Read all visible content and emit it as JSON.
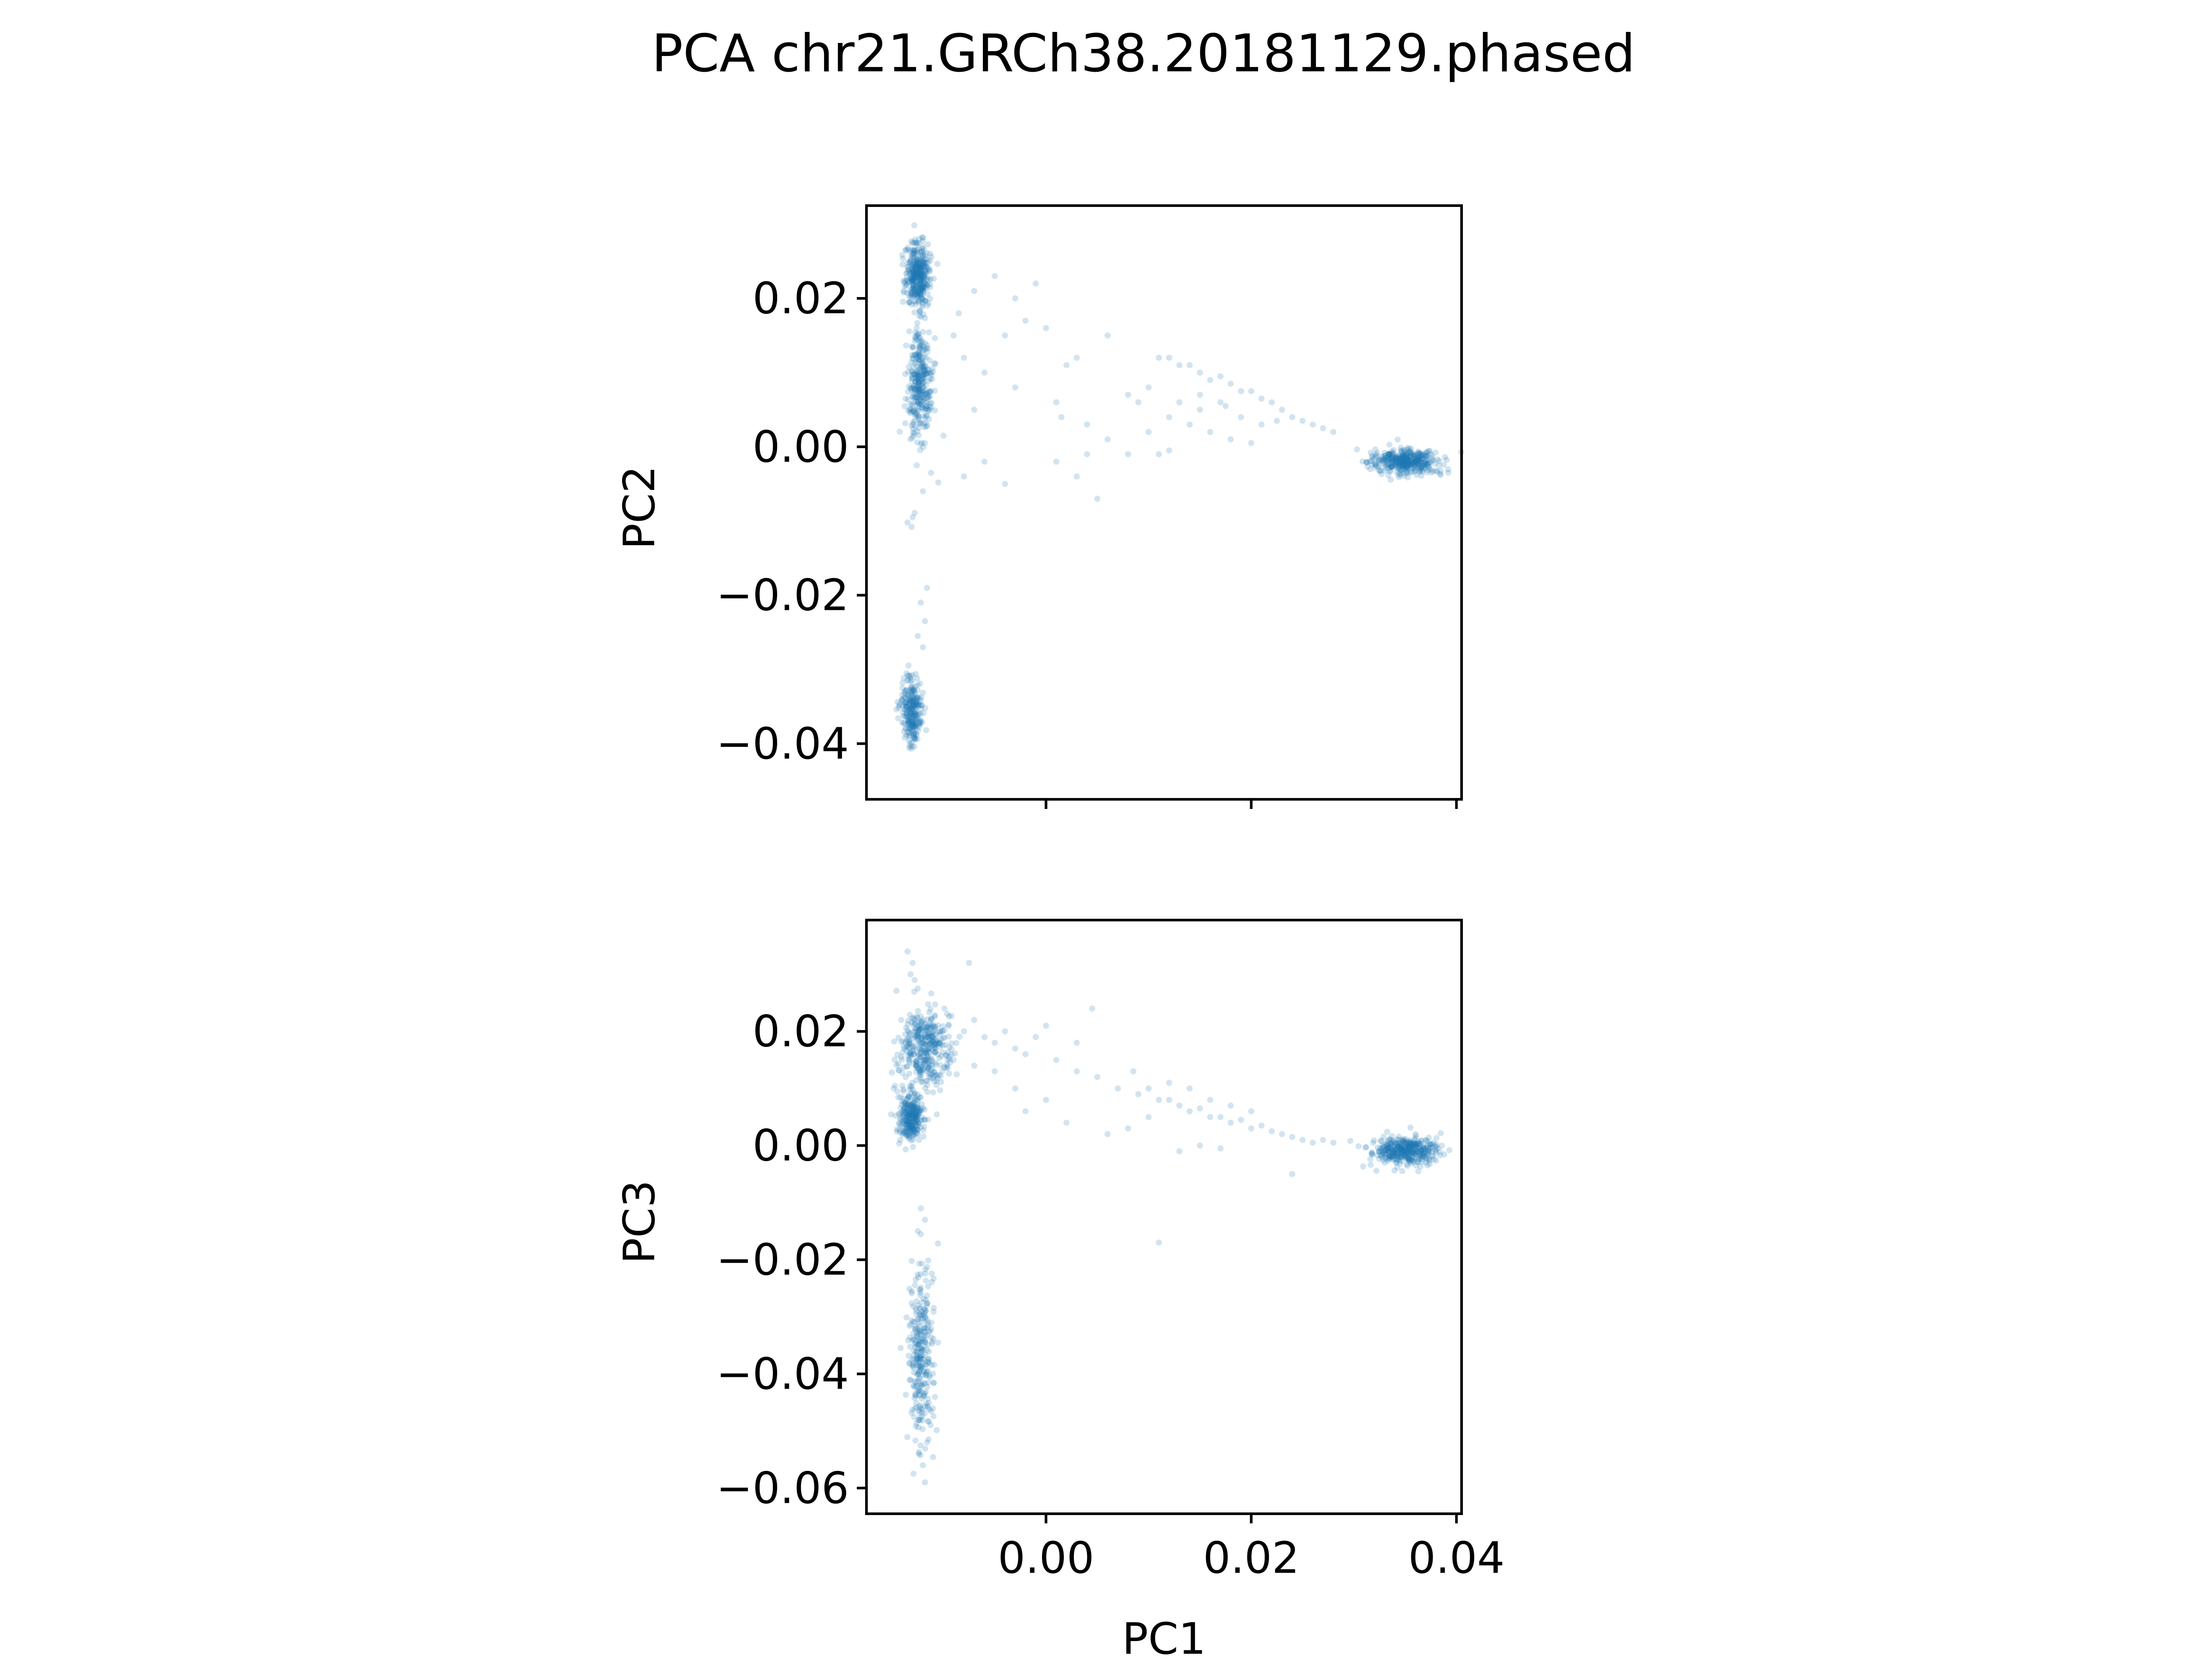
{
  "figure": {
    "title": "PCA chr21.GRCh38.20181129.phased"
  },
  "chart_data": [
    {
      "type": "scatter",
      "title": "",
      "xlabel": "",
      "ylabel": "PC2",
      "xlim": [
        -0.0175,
        0.0405
      ],
      "ylim": [
        -0.0475,
        0.0325
      ],
      "xticks": [
        0.0,
        0.02,
        0.04
      ],
      "xtick_labels": [
        "",
        "",
        ""
      ],
      "yticks": [
        0.02,
        0.0,
        -0.02,
        -0.04
      ],
      "ytick_labels": [
        "0.02",
        "0.00",
        "−0.02",
        "−0.04"
      ],
      "grid": false,
      "color": "#1f77b4",
      "clusters": [
        {
          "label": "upper-left",
          "cx": -0.0125,
          "cy": 0.0232,
          "sx": 0.0006,
          "sy": 0.0022,
          "n": 380
        },
        {
          "label": "middle-left",
          "cx": -0.0123,
          "cy": 0.0085,
          "sx": 0.0006,
          "sy": 0.0035,
          "n": 320
        },
        {
          "label": "lower-left",
          "cx": -0.0131,
          "cy": -0.0355,
          "sx": 0.0005,
          "sy": 0.0022,
          "n": 260
        },
        {
          "label": "right",
          "cx": 0.035,
          "cy": -0.002,
          "sx": 0.0016,
          "sy": 0.0008,
          "n": 420
        }
      ],
      "points": [
        [
          -0.013,
          -0.0095
        ],
        [
          -0.0135,
          -0.0102
        ],
        [
          -0.0128,
          -0.0089
        ],
        [
          -0.0131,
          -0.0108
        ],
        [
          -0.0126,
          -0.0025
        ],
        [
          -0.0112,
          -0.0035
        ],
        [
          -0.012,
          -0.006
        ],
        [
          -0.0105,
          -0.0048
        ],
        [
          -0.0118,
          0.0005
        ],
        [
          -0.01,
          0.0015
        ],
        [
          -0.0122,
          -0.021
        ],
        [
          -0.0118,
          -0.0235
        ],
        [
          -0.0125,
          -0.0255
        ],
        [
          -0.012,
          -0.027
        ],
        [
          -0.0116,
          -0.019
        ],
        [
          -0.009,
          0.015
        ],
        [
          -0.008,
          0.012
        ],
        [
          -0.006,
          0.01
        ],
        [
          -0.004,
          0.015
        ],
        [
          -0.002,
          0.017
        ],
        [
          -0.005,
          0.023
        ],
        [
          -0.003,
          0.02
        ],
        [
          0.0,
          0.016
        ],
        [
          -0.007,
          0.005
        ],
        [
          -0.003,
          0.008
        ],
        [
          0.001,
          0.006
        ],
        [
          0.004,
          0.003
        ],
        [
          -0.006,
          -0.002
        ],
        [
          -0.008,
          -0.004
        ],
        [
          -0.004,
          -0.005
        ],
        [
          0.001,
          -0.002
        ],
        [
          0.003,
          -0.004
        ],
        [
          0.005,
          -0.007
        ],
        [
          0.006,
          0.001
        ],
        [
          0.008,
          0.007
        ],
        [
          0.009,
          0.006
        ],
        [
          0.01,
          0.008
        ],
        [
          0.011,
          0.012
        ],
        [
          0.012,
          0.012
        ],
        [
          0.013,
          0.011
        ],
        [
          0.014,
          0.011
        ],
        [
          0.015,
          0.01
        ],
        [
          0.016,
          0.009
        ],
        [
          0.017,
          0.0095
        ],
        [
          0.018,
          0.0085
        ],
        [
          0.019,
          0.0075
        ],
        [
          0.02,
          0.0075
        ],
        [
          0.021,
          0.0065
        ],
        [
          0.022,
          0.006
        ],
        [
          0.023,
          0.005
        ],
        [
          0.024,
          0.004
        ],
        [
          0.025,
          0.0035
        ],
        [
          0.026,
          0.003
        ],
        [
          0.027,
          0.0025
        ],
        [
          0.028,
          0.002
        ],
        [
          0.012,
          0.004
        ],
        [
          0.014,
          0.003
        ],
        [
          0.016,
          0.002
        ],
        [
          0.018,
          0.001
        ],
        [
          0.02,
          0.0005
        ],
        [
          0.013,
          0.006
        ],
        [
          0.015,
          0.005
        ],
        [
          0.017,
          0.006
        ],
        [
          0.019,
          0.004
        ],
        [
          0.021,
          0.003
        ],
        [
          0.011,
          -0.001
        ],
        [
          0.012,
          -0.0005
        ],
        [
          0.015,
          0.007
        ],
        [
          0.0175,
          0.0055
        ],
        [
          0.0225,
          0.0035
        ],
        [
          0.006,
          0.015
        ],
        [
          0.002,
          0.011
        ],
        [
          -0.001,
          0.022
        ],
        [
          -0.007,
          0.021
        ],
        [
          -0.0085,
          0.018
        ],
        [
          0.004,
          -0.001
        ],
        [
          0.008,
          -0.001
        ],
        [
          0.01,
          0.002
        ],
        [
          0.003,
          0.012
        ],
        [
          0.0015,
          0.004
        ]
      ]
    },
    {
      "type": "scatter",
      "title": "",
      "xlabel": "PC1",
      "ylabel": "PC3",
      "xlim": [
        -0.0175,
        0.0405
      ],
      "ylim": [
        -0.0645,
        0.0395
      ],
      "xticks": [
        0.0,
        0.02,
        0.04
      ],
      "xtick_labels": [
        "0.00",
        "0.02",
        "0.04"
      ],
      "yticks": [
        0.02,
        0.0,
        -0.02,
        -0.04,
        -0.06
      ],
      "ytick_labels": [
        "0.02",
        "0.00",
        "−0.02",
        "−0.04",
        "−0.06"
      ],
      "grid": false,
      "color": "#1f77b4",
      "clusters": [
        {
          "label": "upper-left",
          "cx": -0.0118,
          "cy": 0.017,
          "sx": 0.0012,
          "sy": 0.0035,
          "n": 380
        },
        {
          "label": "middle-left",
          "cx": -0.0132,
          "cy": 0.005,
          "sx": 0.0006,
          "sy": 0.002,
          "n": 280
        },
        {
          "label": "lower-left",
          "cx": -0.0122,
          "cy": -0.037,
          "sx": 0.0006,
          "sy": 0.0075,
          "n": 300
        },
        {
          "label": "right",
          "cx": 0.035,
          "cy": -0.001,
          "sx": 0.0016,
          "sy": 0.0012,
          "n": 420
        }
      ],
      "points": [
        [
          -0.0135,
          0.034
        ],
        [
          -0.013,
          0.032
        ],
        [
          -0.0132,
          0.03
        ],
        [
          -0.0128,
          0.029
        ],
        [
          -0.0125,
          0.0275
        ],
        [
          -0.0095,
          0.021
        ],
        [
          -0.008,
          0.02
        ],
        [
          -0.007,
          0.022
        ],
        [
          -0.006,
          0.019
        ],
        [
          -0.005,
          0.018
        ],
        [
          -0.004,
          0.02
        ],
        [
          -0.003,
          0.017
        ],
        [
          -0.002,
          0.016
        ],
        [
          -0.001,
          0.019
        ],
        [
          0.0,
          0.021
        ],
        [
          -0.009,
          0.015
        ],
        [
          -0.007,
          0.014
        ],
        [
          -0.005,
          0.013
        ],
        [
          -0.0075,
          0.032
        ],
        [
          0.0045,
          0.024
        ],
        [
          0.001,
          0.015
        ],
        [
          0.003,
          0.013
        ],
        [
          0.005,
          0.012
        ],
        [
          0.007,
          0.01
        ],
        [
          0.009,
          0.009
        ],
        [
          0.01,
          0.01
        ],
        [
          0.011,
          0.008
        ],
        [
          0.012,
          0.008
        ],
        [
          0.013,
          0.007
        ],
        [
          0.014,
          0.006
        ],
        [
          0.015,
          0.0065
        ],
        [
          0.016,
          0.005
        ],
        [
          0.017,
          0.005
        ],
        [
          0.018,
          0.004
        ],
        [
          0.019,
          0.0045
        ],
        [
          0.02,
          0.003
        ],
        [
          0.021,
          0.0035
        ],
        [
          0.022,
          0.0025
        ],
        [
          0.023,
          0.002
        ],
        [
          0.024,
          0.0015
        ],
        [
          0.025,
          0.001
        ],
        [
          0.026,
          0.0005
        ],
        [
          0.027,
          0.001
        ],
        [
          0.028,
          0.0005
        ],
        [
          0.012,
          0.011
        ],
        [
          0.014,
          0.01
        ],
        [
          0.016,
          0.008
        ],
        [
          0.018,
          0.007
        ],
        [
          0.02,
          0.006
        ],
        [
          0.01,
          0.005
        ],
        [
          0.008,
          0.003
        ],
        [
          0.006,
          0.002
        ],
        [
          0.002,
          0.004
        ],
        [
          0.0,
          0.008
        ],
        [
          -0.002,
          0.006
        ],
        [
          0.011,
          -0.017
        ],
        [
          0.013,
          -0.001
        ],
        [
          0.015,
          0.0
        ],
        [
          0.017,
          -0.0005
        ],
        [
          0.024,
          -0.005
        ],
        [
          -0.0122,
          -0.011
        ],
        [
          -0.0118,
          -0.013
        ],
        [
          -0.0125,
          -0.015
        ],
        [
          -0.012,
          -0.056
        ],
        [
          -0.0118,
          -0.059
        ],
        [
          -0.0124,
          -0.054
        ],
        [
          -0.0116,
          -0.052
        ],
        [
          0.003,
          0.018
        ],
        [
          0.0085,
          0.013
        ],
        [
          -0.003,
          0.01
        ]
      ]
    }
  ]
}
